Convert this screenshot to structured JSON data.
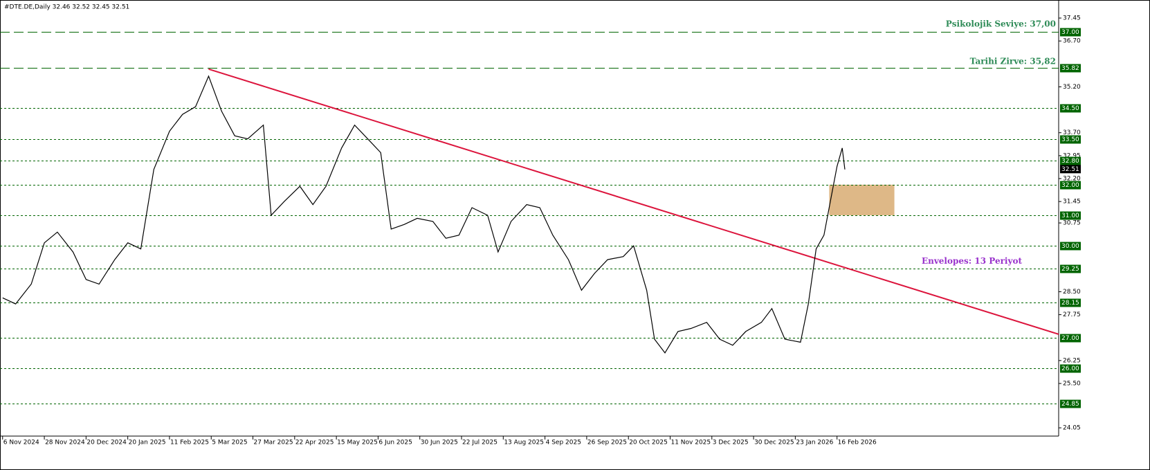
{
  "chart_data": {
    "type": "line",
    "title": "#DTE.DE,Daily  32.46 32.52 32.45 32.51",
    "x": [
      1,
      6,
      12,
      17,
      22,
      28,
      33,
      38,
      44,
      49,
      54,
      59,
      65,
      70,
      75,
      80,
      85,
      90,
      95,
      101,
      104,
      109,
      115,
      120,
      125,
      131,
      136,
      141,
      146,
      150,
      155,
      160,
      166,
      171,
      176,
      181,
      187,
      191,
      196,
      202,
      207,
      212,
      218,
      223,
      228,
      233,
      239,
      243,
      248,
      251,
      255,
      260,
      265,
      271,
      276,
      281,
      286,
      292,
      296,
      301,
      307,
      310,
      313,
      316,
      319,
      321,
      323,
      324
    ],
    "values": [
      28.3,
      28.1,
      28.75,
      30.1,
      30.45,
      29.8,
      28.9,
      28.75,
      29.55,
      30.1,
      29.9,
      32.5,
      33.75,
      34.3,
      34.55,
      35.55,
      34.4,
      33.6,
      33.5,
      33.95,
      31.0,
      31.45,
      31.95,
      31.35,
      31.95,
      33.2,
      33.95,
      33.5,
      33.05,
      30.55,
      30.7,
      30.9,
      30.8,
      30.25,
      30.35,
      31.25,
      31.0,
      29.8,
      30.8,
      31.35,
      31.25,
      30.35,
      29.55,
      28.55,
      29.1,
      29.55,
      29.65,
      30.0,
      28.55,
      26.95,
      26.5,
      27.2,
      27.3,
      27.5,
      26.95,
      26.75,
      27.2,
      27.5,
      27.95,
      26.95,
      26.85,
      28.1,
      29.9,
      30.35,
      31.7,
      32.6,
      33.2,
      32.5
    ],
    "color": "#000000",
    "xlim": [
      0,
      406
    ],
    "ylim": [
      23.78,
      38.04
    ],
    "xticks": [
      {
        "value": 1,
        "label": "6 Nov 2024"
      },
      {
        "value": 17,
        "label": "28 Nov 2024"
      },
      {
        "value": 33,
        "label": "20 Dec 2024"
      },
      {
        "value": 49,
        "label": "20 Jan 2025"
      },
      {
        "value": 65,
        "label": "11 Feb 2025"
      },
      {
        "value": 81,
        "label": "5 Mar 2025"
      },
      {
        "value": 97,
        "label": "27 Mar 2025"
      },
      {
        "value": 113,
        "label": "22 Apr 2025"
      },
      {
        "value": 129,
        "label": "15 May 2025"
      },
      {
        "value": 145,
        "label": "6 Jun 2025"
      },
      {
        "value": 161,
        "label": "30 Jun 2025"
      },
      {
        "value": 177,
        "label": "22 Jul 2025"
      },
      {
        "value": 193,
        "label": "13 Aug 2025"
      },
      {
        "value": 209,
        "label": "4 Sep 2025"
      },
      {
        "value": 225,
        "label": "26 Sep 2025"
      },
      {
        "value": 241,
        "label": "20 Oct 2025"
      },
      {
        "value": 257,
        "label": "11 Nov 2025"
      },
      {
        "value": 273,
        "label": "3 Dec 2025"
      },
      {
        "value": 289,
        "label": "30 Dec 2025"
      },
      {
        "value": 305,
        "label": "23 Jan 2026"
      },
      {
        "value": 321,
        "label": "16 Feb 2026"
      }
    ],
    "yticks": [
      {
        "value": 37.45,
        "label": "37.45"
      },
      {
        "value": 36.7,
        "label": "36.70"
      },
      {
        "value": 35.2,
        "label": "35.20"
      },
      {
        "value": 33.7,
        "label": "33.70"
      },
      {
        "value": 32.95,
        "label": "32.95"
      },
      {
        "value": 32.2,
        "label": "32.20"
      },
      {
        "value": 31.45,
        "label": "31.45"
      },
      {
        "value": 30.75,
        "label": "30.75"
      },
      {
        "value": 28.5,
        "label": "28.50"
      },
      {
        "value": 27.75,
        "label": "27.75"
      },
      {
        "value": 26.25,
        "label": "26.25"
      },
      {
        "value": 25.5,
        "label": "25.50"
      },
      {
        "value": 24.05,
        "label": "24.05"
      }
    ],
    "levels": [
      {
        "value": 37,
        "label": "37.00",
        "dash": "long"
      },
      {
        "value": 35.82,
        "label": "35.82",
        "dash": "long"
      },
      {
        "value": 34.5,
        "label": "34.50",
        "dash": "short"
      },
      {
        "value": 33.5,
        "label": "33.50",
        "dash": "short"
      },
      {
        "value": 32.8,
        "label": "32.80",
        "dash": "short"
      },
      {
        "value": 32,
        "label": "32.00",
        "dash": "short"
      },
      {
        "value": 31,
        "label": "31.00",
        "dash": "short"
      },
      {
        "value": 30,
        "label": "30.00",
        "dash": "short"
      },
      {
        "value": 29.25,
        "label": "29.25",
        "dash": "short"
      },
      {
        "value": 28.15,
        "label": "28.15",
        "dash": "short"
      },
      {
        "value": 27,
        "label": "27.00",
        "dash": "short"
      },
      {
        "value": 26,
        "label": "26.00",
        "dash": "short"
      },
      {
        "value": 24.85,
        "label": "24.85",
        "dash": "short"
      }
    ],
    "level_color": "#006400",
    "last_price": {
      "value": 32.51,
      "label": "32.51"
    },
    "trendline": {
      "x": [
        80,
        406
      ],
      "y": [
        35.78,
        27.11
      ],
      "color": "#dc143c"
    },
    "zone": {
      "x": [
        318,
        343
      ],
      "y": [
        31.0,
        32.0
      ],
      "color": "#deb887"
    },
    "annotations": [
      {
        "text": "Psikolojik Seviye: 37,00",
        "x": 406,
        "y": 37.25,
        "color": "#2e8b57"
      },
      {
        "text": "Tarihi Zirve: 35,82",
        "x": 406,
        "y": 36.02,
        "color": "#2e8b57"
      },
      {
        "text": "Envelopes: 13 Periyot",
        "x": 393,
        "y": 29.5,
        "color": "#9932cc"
      }
    ]
  }
}
